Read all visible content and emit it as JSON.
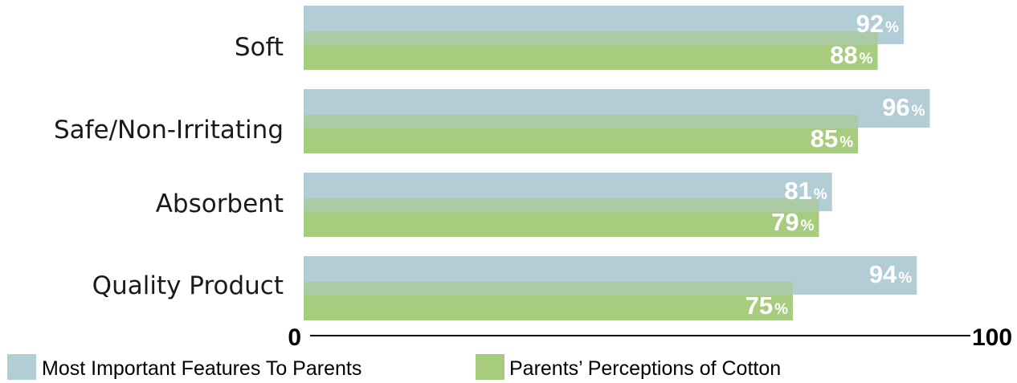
{
  "chart_data": {
    "type": "bar",
    "orientation": "horizontal",
    "categories": [
      "Soft",
      "Safe/Non-Irritating",
      "Absorbent",
      "Quality Product"
    ],
    "series": [
      {
        "name": "Most Important Features To Parents",
        "values": [
          92,
          96,
          81,
          94
        ],
        "color": "#b2cdd6"
      },
      {
        "name": "Parents’ Perceptions of Cotton",
        "values": [
          88,
          85,
          79,
          75
        ],
        "color": "#a8cc7e"
      }
    ],
    "overlap_color": "#adcaa7",
    "value_suffix": "%",
    "xlim": [
      0,
      100
    ],
    "x_ticks": [
      "0",
      "100"
    ],
    "legend_position": "bottom-left",
    "grid": false
  }
}
